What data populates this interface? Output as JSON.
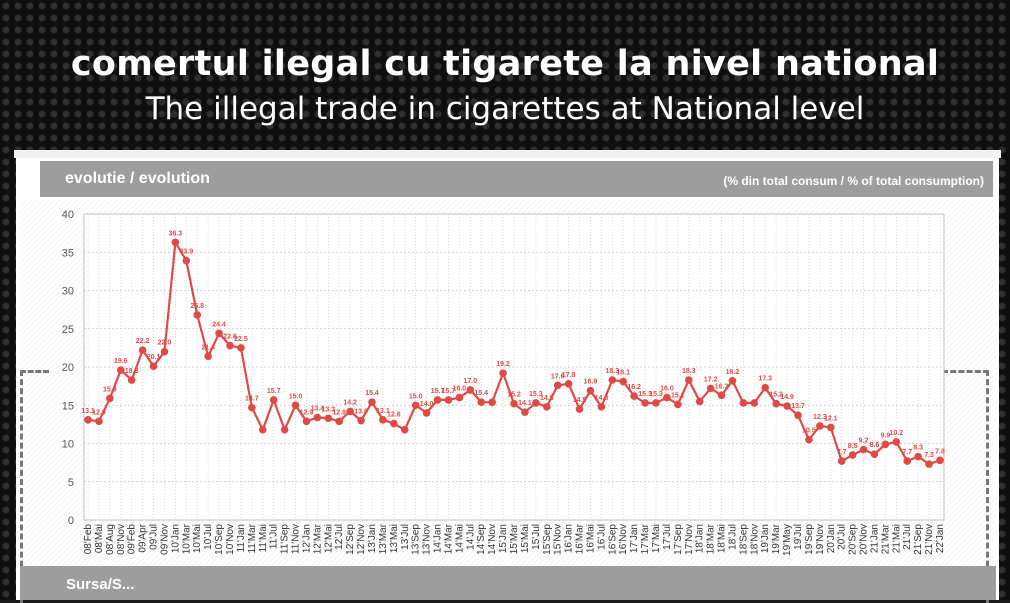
{
  "page": {
    "title_ro": "comertul ilegal cu tigarete la nivel national",
    "title_en": "The illegal trade in cigarettes at National level",
    "panel_left": "evolutie / evolution",
    "panel_right": "(% din total consum / % of total consumption)",
    "footer": "Sursa/S...",
    "colors": {
      "line": "#e04a44",
      "header": "#9d9d9d",
      "background": "#161616"
    }
  },
  "chart_data": {
    "type": "line",
    "ylim": [
      0,
      40
    ],
    "yticks": [
      0,
      5,
      10,
      15,
      20,
      25,
      30,
      35,
      40
    ],
    "grid": true,
    "categories": [
      "08'Feb",
      "08'Mai",
      "08'Aug",
      "08'Nov",
      "09'Feb",
      "09'Apr",
      "09'Jul",
      "09'Nov",
      "10'Jan",
      "10'Mar",
      "10'Mai",
      "10'Jul",
      "10'Sep",
      "10'Nov",
      "11'Jan",
      "11'Mar",
      "11'Mai",
      "11'Jul",
      "11'Sep",
      "11'Nov",
      "12'Jan",
      "12'Mar",
      "12'Mai",
      "12'Jul",
      "12'Sep",
      "12'Nov",
      "13'Jan",
      "13'Mar",
      "13'Mai",
      "13'Jul",
      "13'Sep",
      "13'Nov",
      "14'Jan",
      "14'Mar",
      "14'Mai",
      "14'Jul",
      "14'Sep",
      "14'Nov",
      "15'Jan",
      "15'Mar",
      "15'Mai",
      "15'Jul",
      "15'Sep",
      "15'Nov",
      "16'Jan",
      "16'Mar",
      "16'Mai",
      "16'Jul",
      "16'Sep",
      "16'Nov",
      "17'Jan",
      "17'Mar",
      "17'Mai",
      "17'Jul",
      "17'Sep",
      "17'Nov",
      "18'Jan",
      "18'Mar",
      "18'Mai",
      "18'Jul",
      "18'Sep",
      "18'Nov",
      "19'Jan",
      "19'Mar",
      "19'May",
      "19'Jul",
      "19'Sep",
      "19'Nov",
      "20'Jan",
      "20'Jul",
      "20'Sep",
      "20'Nov",
      "21'Jan",
      "21'Mar",
      "21'Mai",
      "21'Jul",
      "21'Sep",
      "21'Nov",
      "22'Jan"
    ],
    "values": [
      13.1,
      12.9,
      15.9,
      19.6,
      18.3,
      22.2,
      20.1,
      22.0,
      36.3,
      33.9,
      26.8,
      21.4,
      24.4,
      22.8,
      22.5,
      14.7,
      11.8,
      15.7,
      11.8,
      15.0,
      12.9,
      13.4,
      13.3,
      12.9,
      14.2,
      13.0,
      15.4,
      13.1,
      12.6,
      11.8,
      15.0,
      14.0,
      15.7,
      15.7,
      16.0,
      17.0,
      15.4,
      15.4,
      19.2,
      15.2,
      14.1,
      15.3,
      14.8,
      17.6,
      17.8,
      14.5,
      16.9,
      14.8,
      18.3,
      18.1,
      16.2,
      15.3,
      15.3,
      16.0,
      15.1,
      18.3,
      15.5,
      17.2,
      16.3,
      18.2,
      15.3,
      15.3,
      17.3,
      15.2,
      14.9,
      13.7,
      10.5,
      12.3,
      12.1,
      7.7,
      8.5,
      9.2,
      8.6,
      9.9,
      10.2,
      7.7,
      8.3,
      7.3,
      7.8
    ],
    "labels": [
      "13.1",
      "12.9",
      "15.9",
      "19.6",
      "18.3",
      "22.2",
      "20.1",
      "22.0",
      "36.3",
      "33.9",
      "26.8",
      "21.4",
      "24.4",
      "22.8",
      "22.5",
      "14.7",
      "",
      "15.7",
      "",
      "15.0",
      "12.9",
      "13.4",
      "13.3",
      "12.9",
      "14.2",
      "13.0",
      "15.4",
      "13.1",
      "12.6",
      "",
      "15.0",
      "14.0",
      "15.7",
      "15.7",
      "16.0",
      "17.0",
      "15.4",
      "",
      "19.2",
      "15.2",
      "14.1",
      "15.3",
      "14.8",
      "17.6",
      "17.8",
      "14.5",
      "16.9",
      "14.8",
      "18.3",
      "18.1",
      "16.2",
      "15.3",
      "15.3",
      "16.0",
      "15.1",
      "18.3",
      "",
      "17.2",
      "16.3",
      "18.2",
      "",
      "",
      "17.3",
      "15.2",
      "14.9",
      "13.7",
      "10.5",
      "12.3",
      "12.1",
      "7.7",
      "8.5",
      "9.2",
      "8.6",
      "9.9",
      "10.2",
      "7.7",
      "8.3",
      "7.3",
      "7.8"
    ]
  }
}
